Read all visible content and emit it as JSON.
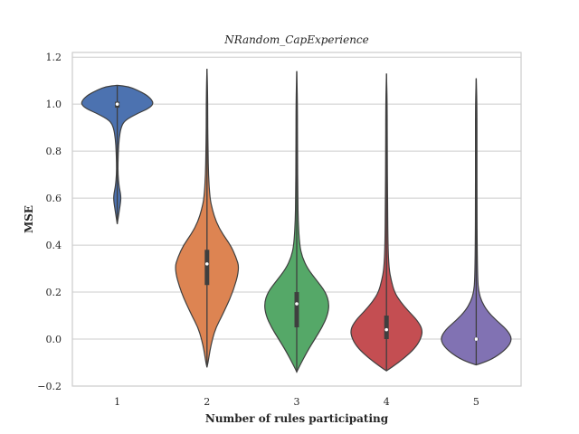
{
  "chart_data": {
    "type": "violin",
    "title": "NRandom_CapExperience",
    "xlabel": "Number of rules participating",
    "ylabel": "MSE",
    "ylim": [
      -0.2,
      1.22
    ],
    "yticks": [
      -0.2,
      0.0,
      0.2,
      0.4,
      0.6,
      0.8,
      1.0,
      1.2
    ],
    "ytick_labels": [
      "−0.2",
      "0.0",
      "0.2",
      "0.4",
      "0.6",
      "0.8",
      "1.0",
      "1.2"
    ],
    "grid": "horizontal",
    "categories": [
      "1",
      "2",
      "3",
      "4",
      "5"
    ],
    "colors": [
      "#4c72b0",
      "#dd8452",
      "#55a868",
      "#c44e52",
      "#8172b3"
    ],
    "series": [
      {
        "category": "1",
        "min": 0.49,
        "max": 1.08,
        "q1": 0.985,
        "median": 1.0,
        "q3": 1.01,
        "profile": [
          [
            0.49,
            0
          ],
          [
            0.5,
            0.01
          ],
          [
            0.52,
            0.03
          ],
          [
            0.55,
            0.06
          ],
          [
            0.58,
            0.09
          ],
          [
            0.6,
            0.1
          ],
          [
            0.62,
            0.09
          ],
          [
            0.65,
            0.05
          ],
          [
            0.7,
            0.02
          ],
          [
            0.75,
            0.02
          ],
          [
            0.8,
            0.03
          ],
          [
            0.85,
            0.05
          ],
          [
            0.9,
            0.1
          ],
          [
            0.93,
            0.2
          ],
          [
            0.96,
            0.55
          ],
          [
            0.98,
            0.85
          ],
          [
            1.0,
            1.0
          ],
          [
            1.02,
            0.95
          ],
          [
            1.04,
            0.8
          ],
          [
            1.06,
            0.55
          ],
          [
            1.075,
            0.3
          ],
          [
            1.08,
            0
          ]
        ]
      },
      {
        "category": "2",
        "min": -0.12,
        "max": 1.15,
        "q1": 0.23,
        "median": 0.32,
        "q3": 0.38,
        "profile": [
          [
            -0.12,
            0
          ],
          [
            -0.1,
            0.03
          ],
          [
            -0.05,
            0.08
          ],
          [
            0.0,
            0.15
          ],
          [
            0.05,
            0.25
          ],
          [
            0.1,
            0.42
          ],
          [
            0.2,
            0.72
          ],
          [
            0.3,
            0.9
          ],
          [
            0.35,
            0.8
          ],
          [
            0.4,
            0.65
          ],
          [
            0.45,
            0.42
          ],
          [
            0.5,
            0.25
          ],
          [
            0.55,
            0.15
          ],
          [
            0.6,
            0.08
          ],
          [
            0.7,
            0.04
          ],
          [
            0.8,
            0.03
          ],
          [
            0.9,
            0.02
          ],
          [
            1.0,
            0.02
          ],
          [
            1.1,
            0.01
          ],
          [
            1.15,
            0
          ]
        ]
      },
      {
        "category": "3",
        "min": -0.14,
        "max": 1.14,
        "q1": 0.05,
        "median": 0.15,
        "q3": 0.2,
        "profile": [
          [
            -0.14,
            0
          ],
          [
            -0.12,
            0.06
          ],
          [
            -0.05,
            0.3
          ],
          [
            0.0,
            0.5
          ],
          [
            0.05,
            0.7
          ],
          [
            0.1,
            0.85
          ],
          [
            0.15,
            0.9
          ],
          [
            0.2,
            0.8
          ],
          [
            0.25,
            0.55
          ],
          [
            0.3,
            0.3
          ],
          [
            0.35,
            0.15
          ],
          [
            0.4,
            0.08
          ],
          [
            0.5,
            0.04
          ],
          [
            0.6,
            0.03
          ],
          [
            0.8,
            0.02
          ],
          [
            1.0,
            0.02
          ],
          [
            1.14,
            0
          ]
        ]
      },
      {
        "category": "4",
        "min": -0.135,
        "max": 1.13,
        "q1": 0.0,
        "median": 0.04,
        "q3": 0.1,
        "profile": [
          [
            -0.135,
            0
          ],
          [
            -0.12,
            0.15
          ],
          [
            -0.08,
            0.5
          ],
          [
            -0.04,
            0.78
          ],
          [
            0.0,
            0.95
          ],
          [
            0.04,
            1.0
          ],
          [
            0.08,
            0.85
          ],
          [
            0.12,
            0.6
          ],
          [
            0.16,
            0.38
          ],
          [
            0.2,
            0.22
          ],
          [
            0.25,
            0.13
          ],
          [
            0.3,
            0.07
          ],
          [
            0.4,
            0.04
          ],
          [
            0.6,
            0.03
          ],
          [
            0.8,
            0.02
          ],
          [
            1.0,
            0.02
          ],
          [
            1.13,
            0
          ]
        ]
      },
      {
        "category": "5",
        "min": -0.11,
        "max": 1.11,
        "q1": -0.005,
        "median": 0.0,
        "q3": 0.005,
        "profile": [
          [
            -0.11,
            0
          ],
          [
            -0.1,
            0.2
          ],
          [
            -0.08,
            0.5
          ],
          [
            -0.04,
            0.85
          ],
          [
            0.0,
            1.0
          ],
          [
            0.04,
            0.85
          ],
          [
            0.08,
            0.55
          ],
          [
            0.12,
            0.3
          ],
          [
            0.16,
            0.15
          ],
          [
            0.2,
            0.07
          ],
          [
            0.25,
            0.04
          ],
          [
            0.4,
            0.025
          ],
          [
            0.6,
            0.02
          ],
          [
            0.8,
            0.02
          ],
          [
            1.0,
            0.02
          ],
          [
            1.11,
            0
          ]
        ]
      }
    ]
  }
}
